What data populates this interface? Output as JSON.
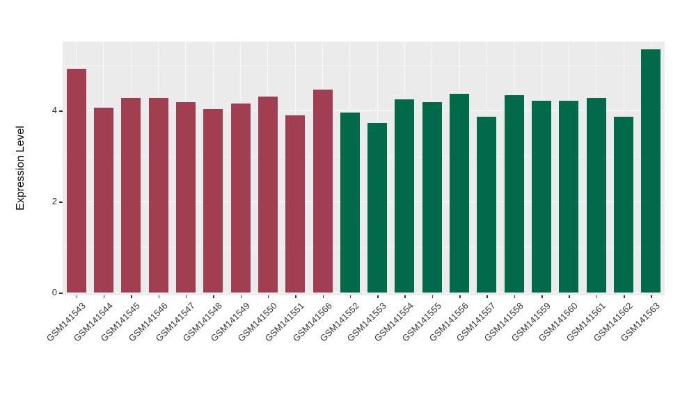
{
  "chart_data": {
    "type": "bar",
    "title": "",
    "xlabel": "",
    "ylabel": "Expression Level",
    "ylim": [
      0,
      5.55
    ],
    "y_major_ticks": [
      0,
      2,
      4
    ],
    "y_minor_ticks": [
      1,
      3,
      5
    ],
    "grid": "on",
    "legend_position": "none",
    "panel_background": "#EBEBEB",
    "gridline_color": "#FFFFFF",
    "group_colors": {
      "group1": "#A23E52",
      "group2": "#016A4B"
    },
    "categories": [
      "GSM141543",
      "GSM141544",
      "GSM141545",
      "GSM141546",
      "GSM141547",
      "GSM141548",
      "GSM141549",
      "GSM141550",
      "GSM141551",
      "GSM141566",
      "GSM141552",
      "GSM141553",
      "GSM141554",
      "GSM141555",
      "GSM141556",
      "GSM141557",
      "GSM141558",
      "GSM141559",
      "GSM141560",
      "GSM141561",
      "GSM141562",
      "GSM141563"
    ],
    "values": [
      4.92,
      4.06,
      4.27,
      4.27,
      4.19,
      4.03,
      4.15,
      4.3,
      3.89,
      4.46,
      3.96,
      3.72,
      4.25,
      4.19,
      4.36,
      3.86,
      4.33,
      4.22,
      4.21,
      4.28,
      3.86,
      5.35
    ],
    "colors": [
      "#A23E52",
      "#A23E52",
      "#A23E52",
      "#A23E52",
      "#A23E52",
      "#A23E52",
      "#A23E52",
      "#A23E52",
      "#A23E52",
      "#A23E52",
      "#016A4B",
      "#016A4B",
      "#016A4B",
      "#016A4B",
      "#016A4B",
      "#016A4B",
      "#016A4B",
      "#016A4B",
      "#016A4B",
      "#016A4B",
      "#016A4B",
      "#016A4B"
    ]
  }
}
